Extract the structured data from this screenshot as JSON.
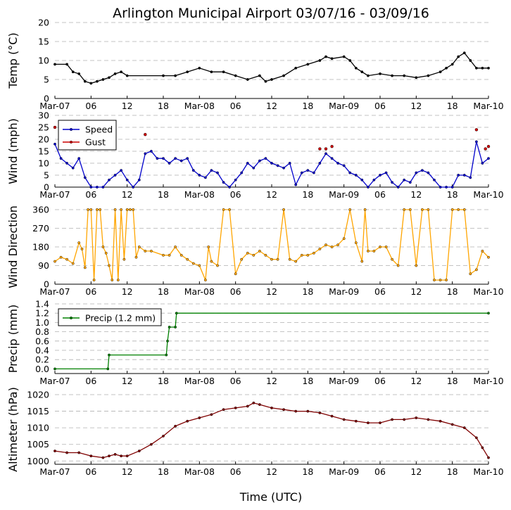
{
  "title": "Arlington Municipal Airport 03/07/16 - 03/09/16",
  "xlabel": "Time (UTC)",
  "x_tick_labels": [
    "Mar-07",
    "06",
    "12",
    "18",
    "Mar-08",
    "06",
    "12",
    "18",
    "Mar-09",
    "06",
    "12",
    "18",
    "Mar-10"
  ],
  "x_range_hours": [
    0,
    72
  ],
  "colors": {
    "temp": "#000000",
    "speed": "#0000cc",
    "gust": "#cc0000",
    "direction": "#ffa500",
    "precip": "#008000",
    "altimeter": "#800000",
    "grid": "#b0b0b0"
  },
  "chart_data": [
    {
      "type": "line",
      "id": "temp",
      "ylabel": "Temp ($^\\circ$C)",
      "ylabel_display": "Temp (°C)",
      "ylim": [
        0,
        20
      ],
      "yticks": [
        0,
        5,
        10,
        15,
        20
      ],
      "x_hours": [
        0,
        2,
        3,
        4,
        5,
        6,
        7,
        8,
        9,
        10,
        11,
        12,
        18,
        20,
        22,
        24,
        26,
        28,
        30,
        32,
        34,
        35,
        36,
        38,
        40,
        42,
        44,
        45,
        46,
        48,
        49,
        50,
        51,
        52,
        54,
        56,
        58,
        60,
        62,
        64,
        65,
        66,
        67,
        68,
        69,
        70,
        71,
        72
      ],
      "series": [
        {
          "name": "Temp",
          "values": [
            9,
            9,
            7,
            6.5,
            4.5,
            4,
            4.5,
            5,
            5.5,
            6.5,
            7,
            6,
            6,
            6,
            7,
            8,
            7,
            7,
            6,
            5,
            6,
            4.5,
            5,
            6,
            8,
            9,
            10,
            11,
            10.5,
            11,
            10,
            8,
            7,
            6,
            6.5,
            6,
            6,
            5.5,
            6,
            7,
            8,
            9,
            11,
            12,
            10,
            8,
            8,
            8
          ]
        }
      ]
    },
    {
      "type": "line",
      "id": "wind",
      "ylabel": "Wind (mph)",
      "ylim": [
        0,
        30
      ],
      "yticks": [
        0,
        5,
        10,
        15,
        20,
        25,
        30
      ],
      "legend": [
        "Speed",
        "Gust"
      ],
      "x_hours": [
        0,
        1,
        2,
        3,
        4,
        5,
        6,
        7,
        8,
        9,
        10,
        11,
        12,
        13,
        14,
        15,
        16,
        17,
        18,
        19,
        20,
        21,
        22,
        23,
        24,
        25,
        26,
        27,
        28,
        29,
        30,
        31,
        32,
        33,
        34,
        35,
        36,
        37,
        38,
        39,
        40,
        41,
        42,
        43,
        44,
        45,
        46,
        47,
        48,
        49,
        50,
        51,
        52,
        53,
        54,
        55,
        56,
        57,
        58,
        59,
        60,
        61,
        62,
        63,
        64,
        65,
        66,
        67,
        68,
        69,
        70,
        71,
        72
      ],
      "series": [
        {
          "name": "Speed",
          "values": [
            18,
            12,
            10,
            8,
            12,
            4,
            0,
            0,
            0,
            3,
            5,
            7,
            3,
            0,
            3,
            14,
            15,
            12,
            12,
            10,
            12,
            11,
            12,
            7,
            5,
            4,
            7,
            6,
            2,
            0,
            3,
            6,
            10,
            8,
            11,
            12,
            10,
            9,
            8,
            10,
            1,
            6,
            7,
            6,
            10,
            14,
            12,
            10,
            9,
            6,
            5,
            3,
            0,
            3,
            5,
            6,
            2,
            0,
            3,
            2,
            6,
            7,
            6,
            3,
            0,
            0,
            0,
            5,
            5,
            4,
            19,
            10,
            12
          ]
        },
        {
          "name": "Gust",
          "x_hours": [
            0,
            15,
            44,
            45,
            46,
            70,
            71.5,
            72
          ],
          "values": [
            25,
            22,
            16,
            16,
            17,
            24,
            16,
            17
          ]
        }
      ]
    },
    {
      "type": "line",
      "id": "direction",
      "ylabel": "Wind Direction",
      "ylim": [
        0,
        360
      ],
      "yticks": [
        0,
        90,
        180,
        270,
        360
      ],
      "x_hours": [
        0,
        1,
        2,
        3,
        4,
        4.5,
        5,
        5.5,
        6,
        6.5,
        7,
        7.5,
        8,
        8.5,
        9,
        9.5,
        10,
        10.5,
        11,
        11.5,
        12,
        12.5,
        13,
        13.5,
        14,
        15,
        16,
        18,
        19,
        20,
        21,
        22,
        23,
        24,
        25,
        25.5,
        26,
        27,
        28,
        29,
        30,
        31,
        32,
        33,
        34,
        35,
        36,
        37,
        38,
        39,
        40,
        41,
        42,
        43,
        44,
        45,
        46,
        47,
        48,
        49,
        50,
        51,
        51.5,
        52,
        53,
        54,
        55,
        56,
        57,
        58,
        59,
        60,
        61,
        62,
        63,
        64,
        65,
        66,
        67,
        68,
        69,
        70,
        71,
        72
      ],
      "series": [
        {
          "name": "Direction",
          "values": [
            110,
            130,
            120,
            100,
            200,
            170,
            80,
            360,
            360,
            20,
            360,
            360,
            180,
            150,
            90,
            20,
            360,
            20,
            360,
            120,
            360,
            360,
            360,
            130,
            180,
            160,
            160,
            140,
            140,
            180,
            140,
            120,
            100,
            90,
            20,
            180,
            110,
            90,
            360,
            360,
            50,
            120,
            150,
            140,
            160,
            140,
            120,
            120,
            360,
            120,
            110,
            140,
            140,
            150,
            170,
            190,
            180,
            190,
            220,
            360,
            200,
            110,
            360,
            160,
            160,
            180,
            180,
            120,
            90,
            360,
            360,
            90,
            360,
            360,
            20,
            20,
            20,
            360,
            360,
            360,
            50,
            70,
            160,
            130
          ]
        }
      ]
    },
    {
      "type": "line",
      "id": "precip",
      "ylabel": "Precip (mm)",
      "ylim": [
        -0.1,
        1.4
      ],
      "yticks": [
        0.0,
        0.2,
        0.4,
        0.6,
        0.8,
        1.0,
        1.2,
        1.4
      ],
      "legend": [
        "Precip (1.2 mm)"
      ],
      "x_hours": [
        0,
        8.8,
        9.0,
        18.5,
        18.7,
        19.0,
        20.0,
        20.2,
        72
      ],
      "series": [
        {
          "name": "Precip (1.2 mm)",
          "values": [
            0.0,
            0.0,
            0.3,
            0.3,
            0.6,
            0.9,
            0.9,
            1.2,
            1.2
          ]
        }
      ]
    },
    {
      "type": "line",
      "id": "altimeter",
      "ylabel": "Altimeter (hPa)",
      "ylim": [
        999,
        1020
      ],
      "yticks": [
        1000,
        1005,
        1010,
        1015,
        1020
      ],
      "x_hours": [
        0,
        2,
        4,
        6,
        8,
        9,
        10,
        11,
        12,
        14,
        16,
        18,
        20,
        22,
        24,
        26,
        28,
        30,
        32,
        33,
        34,
        36,
        38,
        40,
        42,
        44,
        46,
        48,
        50,
        52,
        54,
        56,
        58,
        60,
        62,
        64,
        66,
        68,
        70,
        71,
        72
      ],
      "series": [
        {
          "name": "Altimeter",
          "values": [
            1003,
            1002.5,
            1002.5,
            1001.5,
            1001,
            1001.5,
            1002,
            1001.5,
            1001.5,
            1003,
            1005,
            1007.5,
            1010.5,
            1012,
            1013,
            1014,
            1015.5,
            1016,
            1016.5,
            1017.5,
            1017,
            1016,
            1015.5,
            1015,
            1015,
            1014.5,
            1013.5,
            1012.5,
            1012,
            1011.5,
            1011.5,
            1012.5,
            1012.5,
            1013,
            1012.5,
            1012,
            1011,
            1010,
            1007,
            1004,
            1001
          ]
        }
      ]
    }
  ]
}
